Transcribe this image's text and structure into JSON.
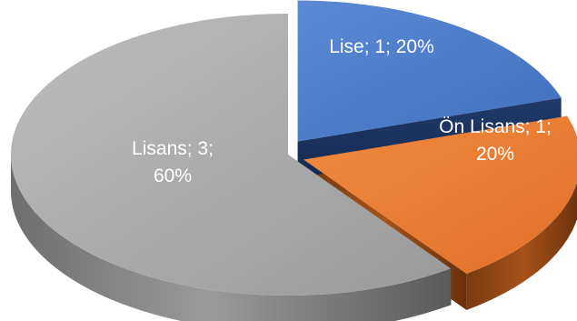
{
  "chart_data": {
    "type": "pie",
    "style": "3d-exploded",
    "slices": [
      {
        "category": "Lise",
        "value": 1,
        "percent": "20%",
        "label_lines": [
          "Lise; 1; 20%"
        ],
        "color": "#4e7dc9",
        "label_color": "#ffffff"
      },
      {
        "category": "Ön Lisans",
        "value": 1,
        "percent": "20%",
        "label_lines": [
          "Ön Lisans; 1;",
          "20%"
        ],
        "color": "#ed7d31",
        "label_color": "#ffffff"
      },
      {
        "category": "Lisans",
        "value": 3,
        "percent": "60%",
        "label_lines": [
          "Lisans; 3;",
          "60%"
        ],
        "color": "#a5a5a5",
        "label_color": "#ffffff"
      }
    ]
  }
}
